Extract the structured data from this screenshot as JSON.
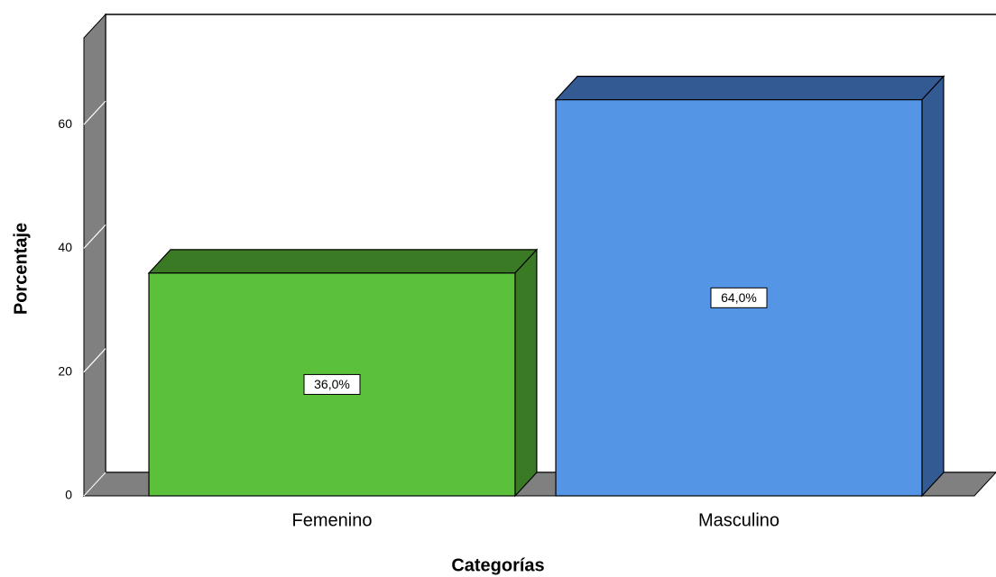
{
  "chart_data": {
    "type": "bar3d",
    "x_label": "Categorías",
    "y_label": "Porcentaje",
    "categories": [
      "Femenino",
      "Masculino"
    ],
    "values": [
      36,
      64
    ],
    "value_labels": [
      "36,0%",
      "64,0%"
    ],
    "colors": [
      "#5cc13a",
      "#5595e5"
    ],
    "side_colors": [
      "#3a7a25",
      "#345a93"
    ],
    "ylim": [
      0,
      74
    ],
    "yticks": [
      0,
      20,
      40,
      60
    ]
  }
}
